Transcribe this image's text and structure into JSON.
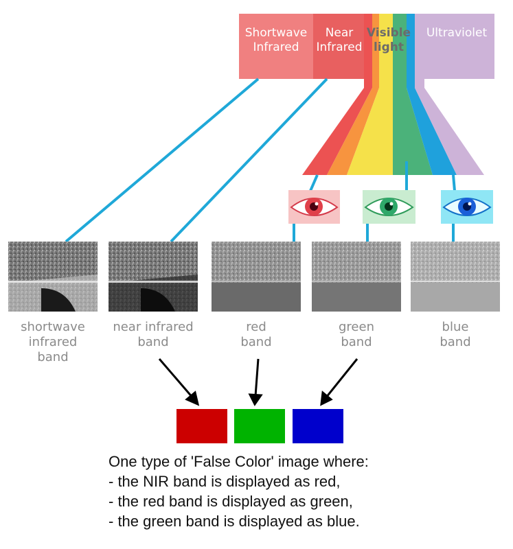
{
  "spectrum": {
    "shortwave": "Shortwave Infrared",
    "near": "Near Infrared",
    "visible": "Visible light",
    "ultraviolet": "Ultraviolet"
  },
  "bands": [
    {
      "caption": [
        "shortwave",
        "infrared",
        "band"
      ]
    },
    {
      "caption": [
        "near infrared",
        "band"
      ]
    },
    {
      "caption": [
        "red",
        "band"
      ]
    },
    {
      "caption": [
        "green",
        "band"
      ]
    },
    {
      "caption": [
        "blue",
        "band"
      ]
    }
  ],
  "composite": {
    "colors": [
      "#cc0000",
      "#00b300",
      "#0000cc"
    ]
  },
  "caption_lines": [
    "One type of 'False Color' image where:",
    "- the NIR band is displayed as red,",
    "- the red band is displayed as green,",
    "- the green band is displayed as blue."
  ]
}
